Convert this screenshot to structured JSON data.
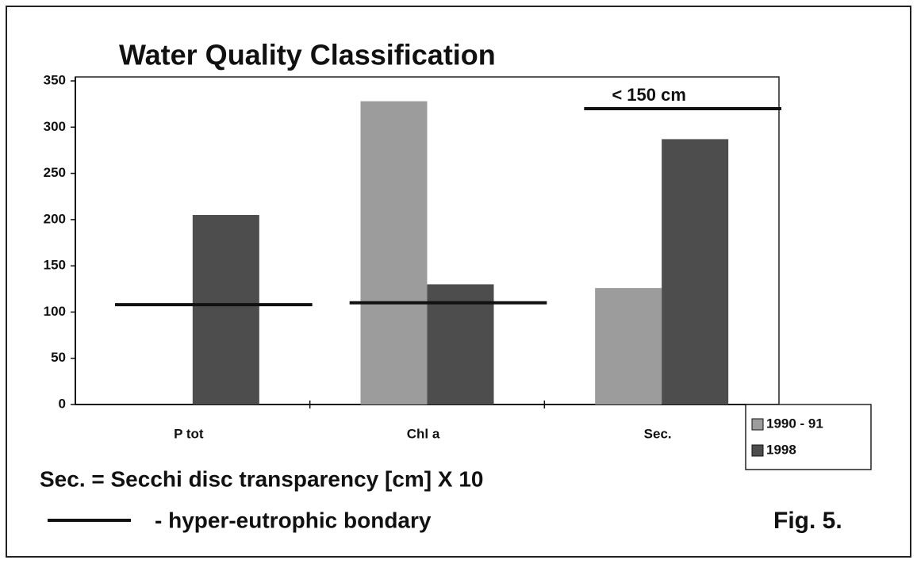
{
  "chart_data": {
    "type": "bar",
    "title": "Water Quality Classification",
    "categories": [
      "P tot",
      "Chl a",
      "Sec."
    ],
    "series": [
      {
        "name": "1990 - 91",
        "color": "#9c9c9c",
        "values": [
          null,
          328,
          126
        ]
      },
      {
        "name": "1998",
        "color": "#4d4d4d",
        "values": [
          205,
          130,
          287
        ]
      }
    ],
    "ylim": [
      0,
      350
    ],
    "yticks": [
      0,
      50,
      100,
      150,
      200,
      250,
      300,
      350
    ],
    "boundary_values": [
      108,
      110,
      320
    ],
    "boundary_annotation": "< 150 cm",
    "notes": [
      "Sec. = Secchi disc transparency [cm] X 10",
      "- hyper-eutrophic bondary"
    ],
    "figure_label": "Fig. 5.",
    "legend": "right-bottom"
  }
}
